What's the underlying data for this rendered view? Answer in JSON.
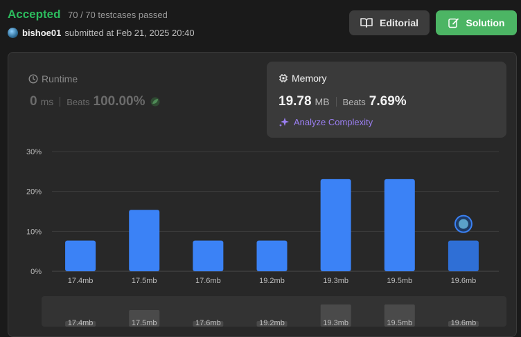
{
  "header": {
    "status": "Accepted",
    "testcases": "70 / 70 testcases passed",
    "user": "bishoe01",
    "submitted_text": "submitted at Feb 21, 2025 20:40",
    "editorial_label": "Editorial",
    "solution_label": "Solution"
  },
  "runtime": {
    "title": "Runtime",
    "value": "0",
    "unit": "ms",
    "beats_label": "Beats",
    "beats_value": "100.00%"
  },
  "memory": {
    "title": "Memory",
    "value": "19.78",
    "unit": "MB",
    "beats_label": "Beats",
    "beats_value": "7.69%",
    "analyze_label": "Analyze Complexity"
  },
  "colors": {
    "accepted": "#2cbb5d",
    "bar": "#3b82f6",
    "bar_selected": "#2f6fd6",
    "accent_purple": "#9b7ff2"
  },
  "chart_data": {
    "type": "bar",
    "categories": [
      "17.4mb",
      "17.5mb",
      "17.6mb",
      "19.2mb",
      "19.3mb",
      "19.5mb",
      "19.6mb"
    ],
    "values": [
      7.69,
      15.38,
      7.69,
      7.69,
      23.08,
      23.08,
      7.69
    ],
    "ylim": [
      0,
      30
    ],
    "yticks": [
      "0%",
      "10%",
      "20%",
      "30%"
    ],
    "highlighted_category": "19.6mb",
    "grid": true,
    "overview_values": [
      1,
      3,
      1,
      1,
      4,
      4,
      1
    ]
  }
}
